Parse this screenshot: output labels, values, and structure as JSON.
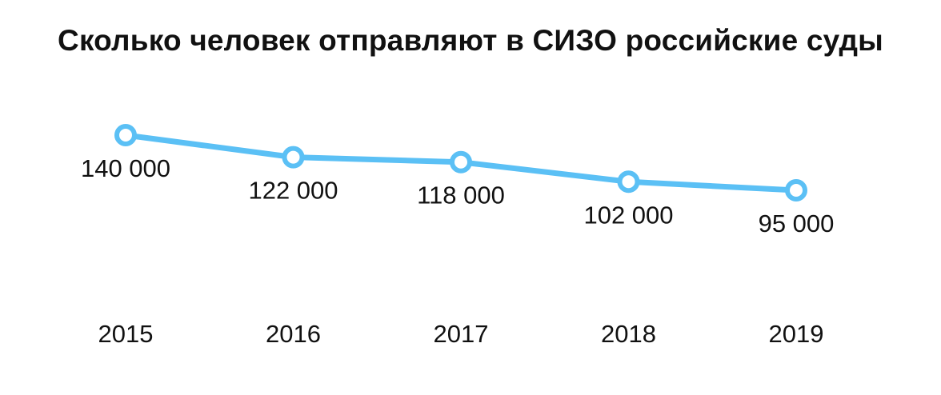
{
  "chart_data": {
    "type": "line",
    "title": "Сколько человек отправляют в СИЗО российские суды",
    "xlabel": "",
    "ylabel": "",
    "categories": [
      "2015",
      "2016",
      "2017",
      "2018",
      "2019"
    ],
    "series": [
      {
        "values": [
          140000,
          122000,
          118000,
          102000,
          95000
        ],
        "labels": [
          "140 000",
          "122 000",
          "118 000",
          "102 000",
          "95 000"
        ],
        "color": "#5bc0f5"
      }
    ],
    "grid": false,
    "legend": "none"
  }
}
